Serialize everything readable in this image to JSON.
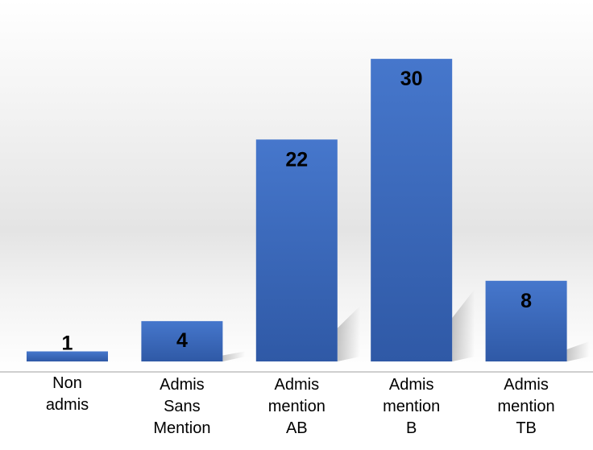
{
  "chart_data": {
    "type": "bar",
    "categories": [
      [
        "Non",
        "admis"
      ],
      [
        "Admis",
        "Sans",
        "Mention"
      ],
      [
        "Admis",
        "mention",
        "AB"
      ],
      [
        "Admis",
        "mention",
        "B"
      ],
      [
        "Admis",
        "mention",
        "TB"
      ]
    ],
    "values": [
      1,
      4,
      22,
      30,
      8
    ],
    "title": "",
    "xlabel": "",
    "ylabel": "",
    "ylim": [
      0,
      30
    ],
    "grid": false,
    "legend": "none",
    "data_labels": true
  },
  "colors": {
    "bar_top": "#4677CC",
    "bar_bottom": "#2F59A6",
    "background_band": "#E6E6E6",
    "axis": "#BFBFBF"
  }
}
